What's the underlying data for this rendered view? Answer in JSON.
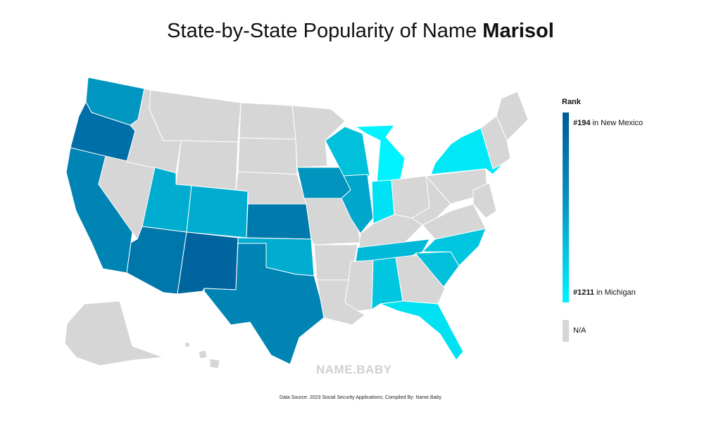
{
  "title": {
    "prefix": "State-by-State Popularity of Name",
    "name": "Marisol"
  },
  "legend": {
    "title": "Rank",
    "top_rank": "#194",
    "top_state": "in New Mexico",
    "bottom_rank": "#1211",
    "bottom_state": "in Michigan",
    "na_label": "N/A"
  },
  "watermark": "NAME.BABY",
  "source": "Data Source: 2023 Social Security Applications; Compiled By: Name.Baby",
  "colors": {
    "rank_high": "#005b96",
    "rank_low": "#00f3ff",
    "na": "#d6d6d6"
  },
  "states": [
    {
      "name": "New Mexico",
      "shade": "#00649e"
    },
    {
      "name": "Arizona",
      "shade": "#0077aa"
    },
    {
      "name": "Texas",
      "shade": "#0084b4"
    },
    {
      "name": "California",
      "shade": "#0084b4"
    },
    {
      "name": "Oregon",
      "shade": "#006fa8"
    },
    {
      "name": "Kansas",
      "shade": "#007aac"
    },
    {
      "name": "Iowa",
      "shade": "#0094be"
    },
    {
      "name": "Washington",
      "shade": "#0096c0"
    },
    {
      "name": "Illinois",
      "shade": "#00a6cc"
    },
    {
      "name": "Utah",
      "shade": "#00acd0"
    },
    {
      "name": "Colorado",
      "shade": "#00acd0"
    },
    {
      "name": "Oklahoma",
      "shade": "#00acd0"
    },
    {
      "name": "Tennessee",
      "shade": "#00b8d8"
    },
    {
      "name": "Wisconsin",
      "shade": "#00c0dc"
    },
    {
      "name": "North Carolina",
      "shade": "#00c6e0"
    },
    {
      "name": "South Carolina",
      "shade": "#00c0dc"
    },
    {
      "name": "Alabama",
      "shade": "#00c6e0"
    },
    {
      "name": "Indiana",
      "shade": "#00e2f4"
    },
    {
      "name": "New York",
      "shade": "#00e8f6"
    },
    {
      "name": "Florida",
      "shade": "#00e2f2"
    },
    {
      "name": "Michigan",
      "shade": "#00f3ff"
    },
    {
      "name": "Montana",
      "shade": "#d6d6d6"
    },
    {
      "name": "Idaho",
      "shade": "#d6d6d6"
    },
    {
      "name": "Wyoming",
      "shade": "#d6d6d6"
    },
    {
      "name": "Nevada",
      "shade": "#d6d6d6"
    },
    {
      "name": "North Dakota",
      "shade": "#d6d6d6"
    },
    {
      "name": "South Dakota",
      "shade": "#d6d6d6"
    },
    {
      "name": "Nebraska",
      "shade": "#d6d6d6"
    },
    {
      "name": "Minnesota",
      "shade": "#d6d6d6"
    },
    {
      "name": "Missouri",
      "shade": "#d6d6d6"
    },
    {
      "name": "Arkansas",
      "shade": "#d6d6d6"
    },
    {
      "name": "Louisiana",
      "shade": "#d6d6d6"
    },
    {
      "name": "Mississippi",
      "shade": "#d6d6d6"
    },
    {
      "name": "Georgia",
      "shade": "#d6d6d6"
    },
    {
      "name": "Kentucky",
      "shade": "#d6d6d6"
    },
    {
      "name": "Ohio",
      "shade": "#d6d6d6"
    },
    {
      "name": "West Virginia",
      "shade": "#d6d6d6"
    },
    {
      "name": "Virginia",
      "shade": "#d6d6d6"
    },
    {
      "name": "Pennsylvania",
      "shade": "#d6d6d6"
    },
    {
      "name": "Maine",
      "shade": "#d6d6d6"
    },
    {
      "name": "New England",
      "shade": "#d6d6d6"
    },
    {
      "name": "Mid-Atlantic",
      "shade": "#d6d6d6"
    },
    {
      "name": "Alaska",
      "shade": "#d6d6d6"
    },
    {
      "name": "Hawaii",
      "shade": "#d6d6d6"
    }
  ]
}
